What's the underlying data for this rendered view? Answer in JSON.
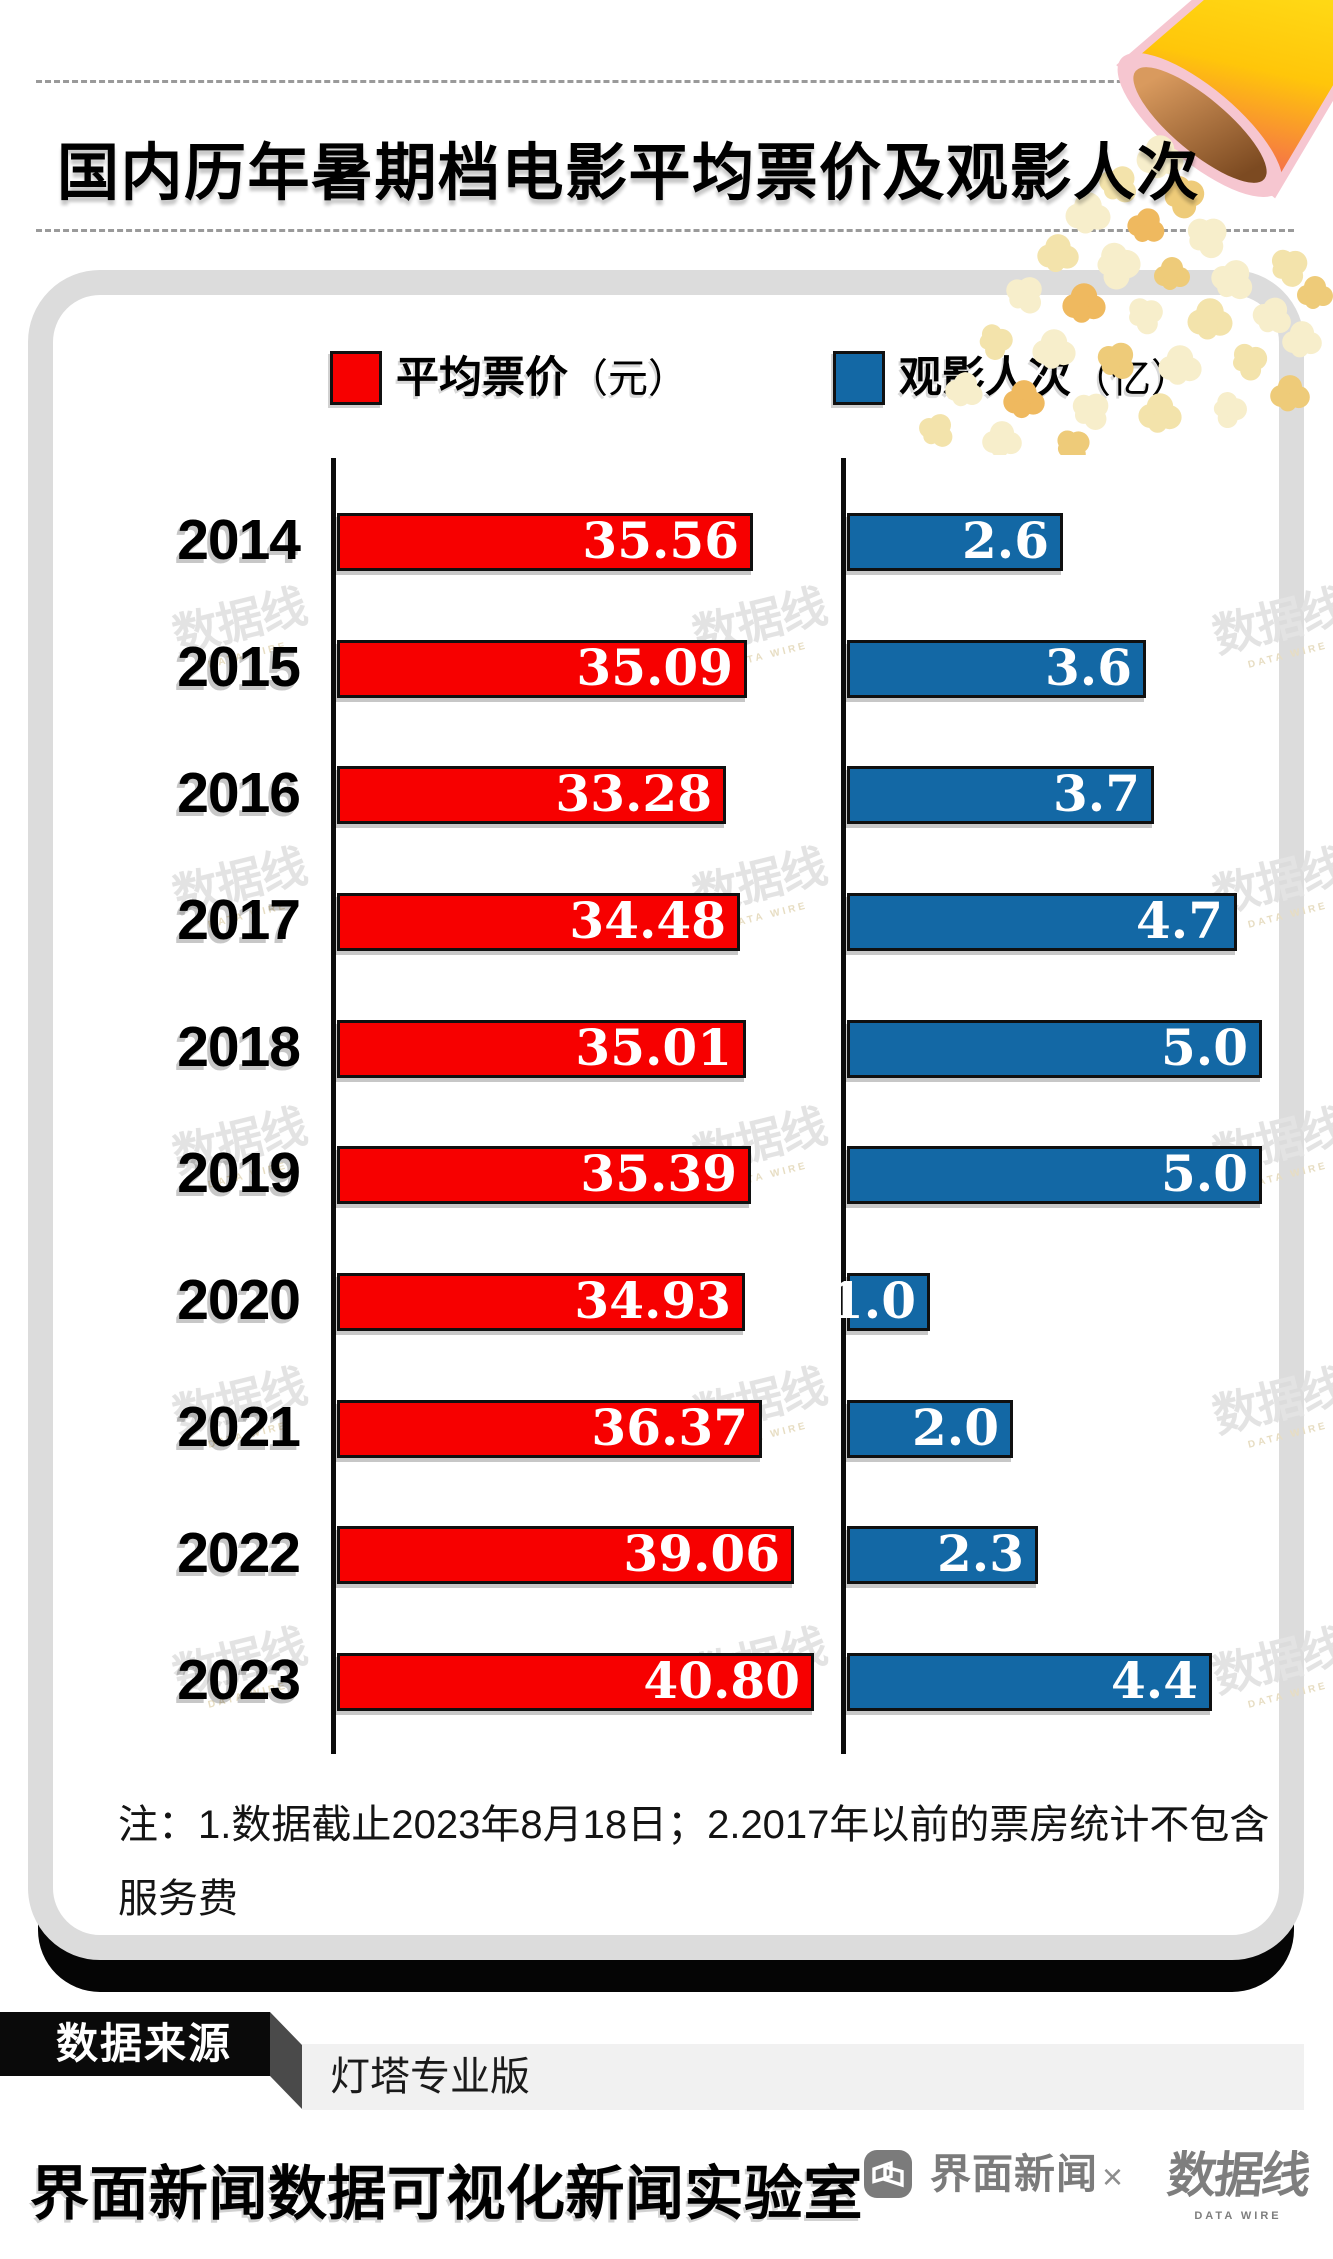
{
  "title": "国内历年暑期档电影平均票价及观影人次",
  "chart_data": {
    "type": "bar",
    "orientation": "horizontal",
    "title": "国内历年暑期档电影平均票价及观影人次",
    "categories": [
      "2014",
      "2015",
      "2016",
      "2017",
      "2018",
      "2019",
      "2020",
      "2021",
      "2022",
      "2023"
    ],
    "series": [
      {
        "name": "平均票价",
        "unit": "（元）",
        "color": "#f70000",
        "values": [
          35.56,
          35.09,
          33.28,
          34.48,
          35.01,
          35.39,
          34.93,
          36.37,
          39.06,
          40.8
        ],
        "labels": [
          "35.56",
          "35.09",
          "33.28",
          "34.48",
          "35.01",
          "35.39",
          "34.93",
          "36.37",
          "39.06",
          "40.80"
        ],
        "axis_max": 40.8
      },
      {
        "name": "观影人次",
        "unit": "（亿）",
        "color": "#1368a5",
        "values": [
          2.6,
          3.6,
          3.7,
          4.7,
          5.0,
          5.0,
          1.0,
          2.0,
          2.3,
          4.4
        ],
        "labels": [
          "2.6",
          "3.6",
          "3.7",
          "4.7",
          "5.0",
          "5.0",
          "1.0",
          "2.0",
          "2.3",
          "4.4"
        ],
        "axis_max": 5.0
      }
    ],
    "legend_position": "top",
    "grid": false,
    "value_labels": "inside-end"
  },
  "note": "注：1.数据截止2023年8月18日；2.2017年以前的票房统计不包含服务费",
  "source": {
    "label": "数据来源",
    "value": "灯塔专业版"
  },
  "footer": {
    "title": "界面新闻数据可视化新闻实验室",
    "brand1": "界面新闻",
    "separator": "×",
    "brand2": "数据线",
    "brand2_sub": "DATA WIRE"
  },
  "watermark": {
    "text": "数据线",
    "sub": "DATA WIRE"
  }
}
